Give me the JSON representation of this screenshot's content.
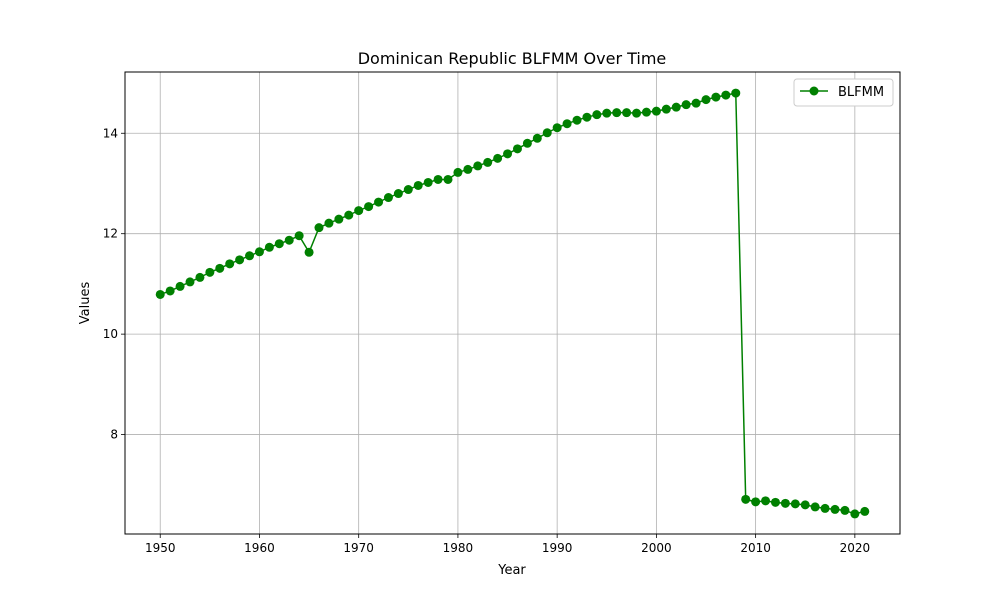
{
  "chart_data": {
    "type": "line",
    "title": "Dominican Republic BLFMM Over Time",
    "xlabel": "Year",
    "ylabel": "Values",
    "xlim": [
      1946.45,
      2024.55
    ],
    "ylim": [
      6.02,
      15.22
    ],
    "xticks": [
      1950,
      1960,
      1970,
      1980,
      1990,
      2000,
      2010,
      2020
    ],
    "yticks": [
      8,
      10,
      12,
      14
    ],
    "grid": true,
    "legend_position": "top-right",
    "series": [
      {
        "name": "BLFMM",
        "color": "#008000",
        "marker": "circle",
        "x": [
          1950,
          1951,
          1952,
          1953,
          1954,
          1955,
          1956,
          1957,
          1958,
          1959,
          1960,
          1961,
          1962,
          1963,
          1964,
          1965,
          1966,
          1967,
          1968,
          1969,
          1970,
          1971,
          1972,
          1973,
          1974,
          1975,
          1976,
          1977,
          1978,
          1979,
          1980,
          1981,
          1982,
          1983,
          1984,
          1985,
          1986,
          1987,
          1988,
          1989,
          1990,
          1991,
          1992,
          1993,
          1994,
          1995,
          1996,
          1997,
          1998,
          1999,
          2000,
          2001,
          2002,
          2003,
          2004,
          2005,
          2006,
          2007,
          2008,
          2009,
          2010,
          2011,
          2012,
          2013,
          2014,
          2015,
          2016,
          2017,
          2018,
          2019,
          2020,
          2021
        ],
        "values": [
          10.79,
          10.86,
          10.95,
          11.04,
          11.13,
          11.23,
          11.31,
          11.4,
          11.48,
          11.56,
          11.64,
          11.73,
          11.8,
          11.87,
          11.96,
          11.63,
          12.12,
          12.21,
          12.29,
          12.37,
          12.46,
          12.54,
          12.63,
          12.72,
          12.8,
          12.88,
          12.96,
          13.02,
          13.08,
          13.08,
          13.22,
          13.28,
          13.35,
          13.42,
          13.5,
          13.59,
          13.69,
          13.8,
          13.9,
          14.01,
          14.11,
          14.19,
          14.26,
          14.32,
          14.37,
          14.4,
          14.41,
          14.41,
          14.4,
          14.42,
          14.44,
          14.48,
          14.52,
          14.57,
          14.6,
          14.67,
          14.72,
          14.76,
          14.8,
          6.71,
          6.66,
          6.68,
          6.65,
          6.63,
          6.62,
          6.6,
          6.56,
          6.53,
          6.51,
          6.49,
          6.42,
          6.47
        ]
      }
    ]
  }
}
